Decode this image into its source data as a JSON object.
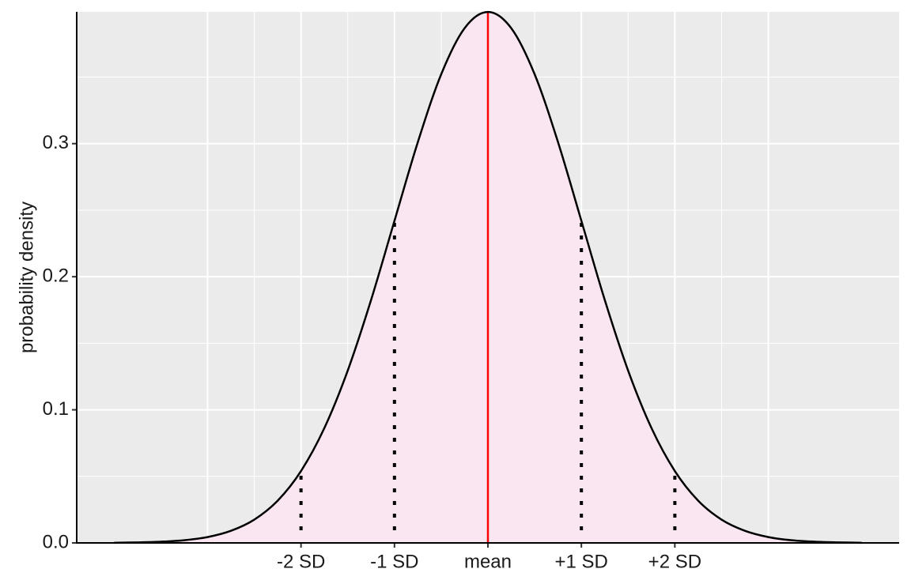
{
  "chart_data": {
    "type": "line",
    "ylabel": "probability density",
    "x": [
      -4,
      -3.75,
      -3.5,
      -3.25,
      -3,
      -2.75,
      -2.5,
      -2.25,
      -2,
      -1.75,
      -1.5,
      -1.25,
      -1,
      -0.75,
      -0.5,
      -0.25,
      0,
      0.25,
      0.5,
      0.75,
      1,
      1.25,
      1.5,
      1.75,
      2,
      2.25,
      2.5,
      2.75,
      3,
      3.25,
      3.5,
      3.75,
      4
    ],
    "values": [
      0.0001,
      0.0004,
      0.0009,
      0.002,
      0.0044,
      0.0091,
      0.0175,
      0.0317,
      0.054,
      0.0863,
      0.1295,
      0.1826,
      0.242,
      0.3011,
      0.3521,
      0.3867,
      0.3989,
      0.3867,
      0.3521,
      0.3011,
      0.242,
      0.1826,
      0.1295,
      0.0863,
      0.054,
      0.0317,
      0.0175,
      0.0091,
      0.0044,
      0.002,
      0.0009,
      0.0004,
      0.0001
    ],
    "color": "#000000",
    "fill": "#f9e6f0",
    "mean_line": {
      "x": 0,
      "y": 0.3989,
      "color": "#ff0000"
    },
    "sd_lines": {
      "x": [
        -2,
        -1,
        1,
        2
      ],
      "values": [
        0.054,
        0.242,
        0.242,
        0.054
      ],
      "color": "#000000"
    },
    "xlim": [
      -4.4,
      4.4
    ],
    "ylim": [
      0,
      0.399
    ],
    "xticks": [
      {
        "value": -2,
        "label": "-2 SD"
      },
      {
        "value": -1,
        "label": "-1 SD"
      },
      {
        "value": 0,
        "label": "mean"
      },
      {
        "value": 1,
        "label": "+1 SD"
      },
      {
        "value": 2,
        "label": "+2 SD"
      }
    ],
    "x_grid": [
      -3,
      -2.5,
      -2,
      -1.5,
      -1,
      -0.5,
      0,
      0.5,
      1,
      1.5,
      2,
      2.5,
      3
    ],
    "yticks": [
      {
        "value": 0,
        "label": "0.0"
      },
      0.1,
      0.2,
      0.3
    ],
    "y_minor_grid": [
      0.05,
      0.15,
      0.25,
      0.35
    ],
    "grid": true
  }
}
